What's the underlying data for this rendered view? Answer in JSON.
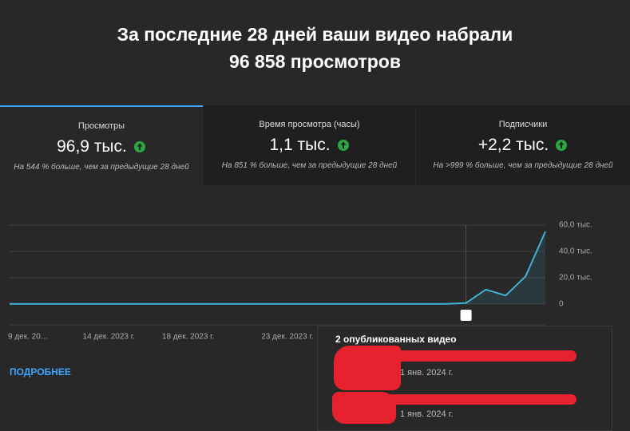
{
  "header": {
    "title": "За последние 28 дней ваши видео набрали",
    "total": "96 858 просмотров"
  },
  "tabs": [
    {
      "label": "Просмотры",
      "value": "96,9 тыс.",
      "comparison": "На 544 % больше, чем за предыдущие 28 дней"
    },
    {
      "label": "Время просмотра (часы)",
      "value": "1,1 тыс.",
      "comparison": "На 851 % больше, чем за предыдущие 28 дней"
    },
    {
      "label": "Подписчики",
      "value": "+2,2 тыс.",
      "comparison": "На >999 % больше, чем за предыдущие 28 дней"
    }
  ],
  "chart_data": {
    "type": "line",
    "categories": [
      "9 дек. 20…",
      null,
      null,
      null,
      null,
      "14 дек. 2023 г.",
      null,
      null,
      null,
      "18 дек. 2023 г.",
      null,
      null,
      null,
      null,
      "23 дек. 2023 г.",
      null,
      null,
      null,
      null,
      null,
      null,
      null,
      null,
      null,
      null,
      null,
      null,
      null
    ],
    "values": [
      150,
      150,
      150,
      150,
      150,
      150,
      150,
      150,
      150,
      150,
      150,
      150,
      150,
      150,
      150,
      150,
      150,
      150,
      150,
      150,
      150,
      150,
      150,
      800,
      11000,
      6500,
      21000,
      55000
    ],
    "color": "#41b4d9",
    "ylim": [
      0,
      60000
    ],
    "yticks": [
      0,
      {
        "value": 20000,
        "label": "20,0 тыс."
      },
      {
        "value": 40000,
        "label": "40,0 тыс."
      },
      {
        "value": 60000,
        "label": "60,0 тыс."
      }
    ],
    "grid": true
  },
  "link": "ПОДРОБНЕЕ",
  "popup": {
    "title": "2 опубликованных видео",
    "items": [
      {
        "date": "1 янв. 2024 г."
      },
      {
        "date": "1 янв. 2024 г."
      }
    ]
  }
}
